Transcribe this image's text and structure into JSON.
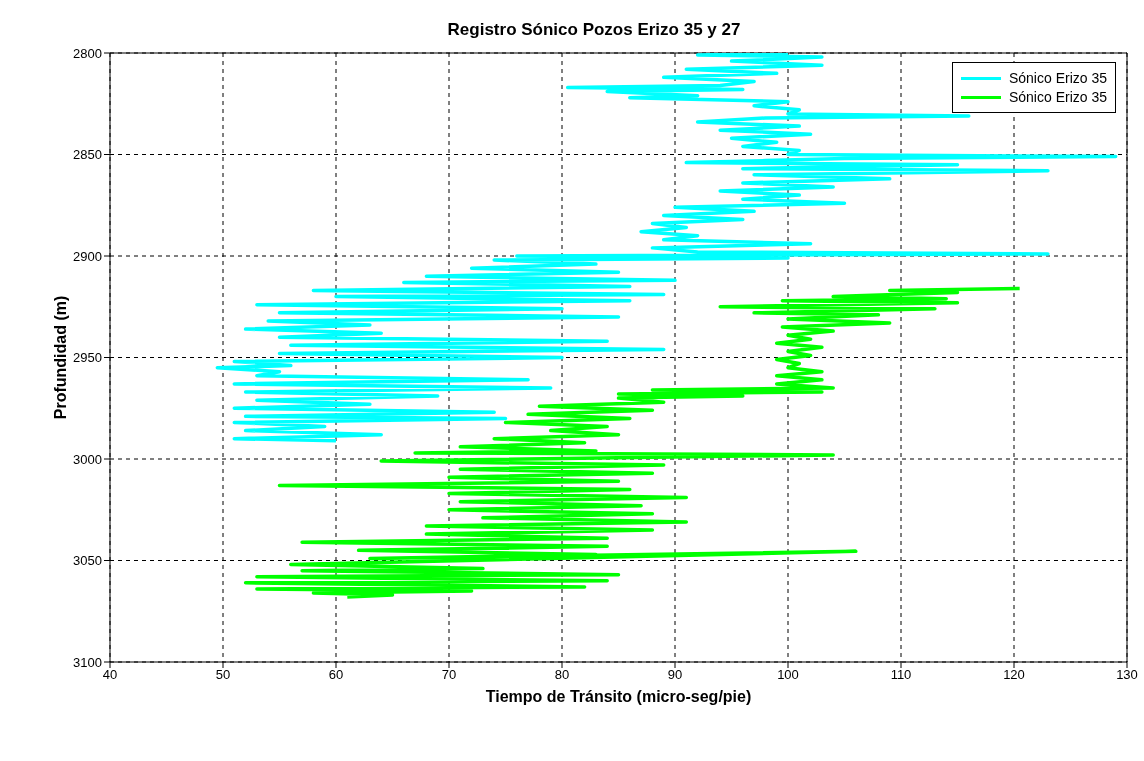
{
  "chart_data": {
    "type": "line",
    "title": "Registro Sónico Pozos Erizo 35 y 27",
    "xlabel": "Tiempo de Tránsito (micro-seg/pie)",
    "ylabel": "Profundidad (m)",
    "xlim": [
      40,
      130
    ],
    "xticks": [
      40,
      50,
      60,
      70,
      80,
      90,
      100,
      110,
      120,
      130
    ],
    "ylim": [
      3100,
      2800
    ],
    "yticks": [
      2800,
      2850,
      2900,
      2950,
      3000,
      3050,
      3100
    ],
    "grid": true,
    "legend": "top right",
    "marker": "none",
    "series": [
      {
        "name": "Sónico Erizo 35",
        "color": "#00ffff",
        "x": [
          100,
          92,
          103,
          95,
          103,
          91,
          99,
          89,
          97,
          94,
          80.5,
          96,
          84,
          92,
          86,
          100,
          97,
          101,
          100,
          116,
          98,
          92,
          101,
          94,
          102,
          95,
          99,
          96,
          101,
          100,
          129,
          105,
          98,
          91,
          115,
          96,
          123,
          97,
          109,
          96,
          104,
          94,
          101,
          96,
          105,
          90,
          97,
          89,
          96,
          88,
          91,
          87,
          92,
          89,
          102,
          88,
          92,
          123,
          76,
          100,
          74,
          83,
          72,
          85,
          68,
          90,
          66,
          86,
          58,
          89,
          60,
          86,
          53,
          80,
          55,
          85,
          54,
          63,
          52,
          64,
          55,
          84,
          56,
          89,
          55,
          80,
          51,
          56,
          49.5,
          55,
          53,
          77,
          51,
          79,
          52,
          69,
          53,
          63,
          51,
          74,
          52,
          75,
          51,
          59,
          52,
          64,
          51,
          60
        ],
        "values": [
          2800,
          2801,
          2802,
          2804,
          2806,
          2808,
          2810,
          2812,
          2814,
          2816,
          2817,
          2818,
          2819,
          2821,
          2822,
          2824,
          2826,
          2828,
          2830,
          2831,
          2832,
          2834,
          2836,
          2838,
          2840,
          2842,
          2844,
          2846,
          2848,
          2850,
          2851,
          2852,
          2853,
          2854,
          2855,
          2857,
          2858,
          2860,
          2862,
          2864,
          2866,
          2868,
          2870,
          2872,
          2874,
          2876,
          2878,
          2880,
          2882,
          2884,
          2886,
          2888,
          2890,
          2892,
          2894,
          2896,
          2898,
          2899,
          2900,
          2901,
          2902,
          2904,
          2906,
          2908,
          2910,
          2912,
          2913,
          2915,
          2917,
          2919,
          2920,
          2922,
          2924,
          2926,
          2928,
          2930,
          2932,
          2934,
          2936,
          2938,
          2940,
          2942,
          2944,
          2946,
          2948,
          2950,
          2952,
          2954,
          2955,
          2957,
          2959,
          2961,
          2963,
          2965,
          2967,
          2969,
          2971,
          2973,
          2975,
          2977,
          2979,
          2980,
          2982,
          2984,
          2986,
          2988,
          2990,
          2991
        ]
      },
      {
        "name": "Sónico Erizo 35",
        "color": "#00ff00",
        "x": [
          120.5,
          109,
          115,
          104,
          114,
          99.5,
          115,
          94,
          113,
          97,
          108,
          100,
          109,
          99.5,
          104,
          100,
          102,
          99,
          103,
          100,
          102,
          99,
          101,
          100,
          103,
          99,
          103,
          99,
          104,
          88,
          103,
          85,
          96,
          85,
          89,
          78,
          88,
          77,
          86,
          75,
          84,
          79,
          85,
          74,
          82,
          71,
          83,
          67,
          104,
          64,
          89,
          71,
          88,
          70,
          85,
          55,
          86,
          70,
          91,
          71,
          87,
          70,
          88,
          73,
          91,
          68,
          88,
          68,
          84,
          57,
          84,
          62,
          83,
          63,
          106,
          56,
          73,
          57,
          85,
          53,
          84,
          52,
          82,
          53,
          72,
          58,
          65,
          61
        ],
        "values": [
          2916,
          2917,
          2918,
          2920,
          2921,
          2922,
          2923,
          2925,
          2926,
          2928,
          2929,
          2931,
          2933,
          2935,
          2937,
          2939,
          2941,
          2943,
          2945,
          2947,
          2949,
          2951,
          2953,
          2955,
          2957,
          2959,
          2961,
          2963,
          2965,
          2966,
          2967,
          2968,
          2969,
          2970,
          2972,
          2974,
          2976,
          2978,
          2980,
          2982,
          2984,
          2986,
          2988,
          2990,
          2992,
          2994,
          2996,
          2997,
          2998,
          3001,
          3003,
          3005,
          3007,
          3009,
          3011,
          3013,
          3015,
          3017,
          3019,
          3021,
          3023,
          3025,
          3027,
          3029,
          3031,
          3033,
          3035,
          3037,
          3039,
          3041,
          3043,
          3045,
          3047,
          3049,
          3045.5,
          3052,
          3054,
          3055,
          3057,
          3058,
          3060,
          3061,
          3063,
          3064,
          3065,
          3066,
          3067,
          3068
        ]
      }
    ]
  }
}
